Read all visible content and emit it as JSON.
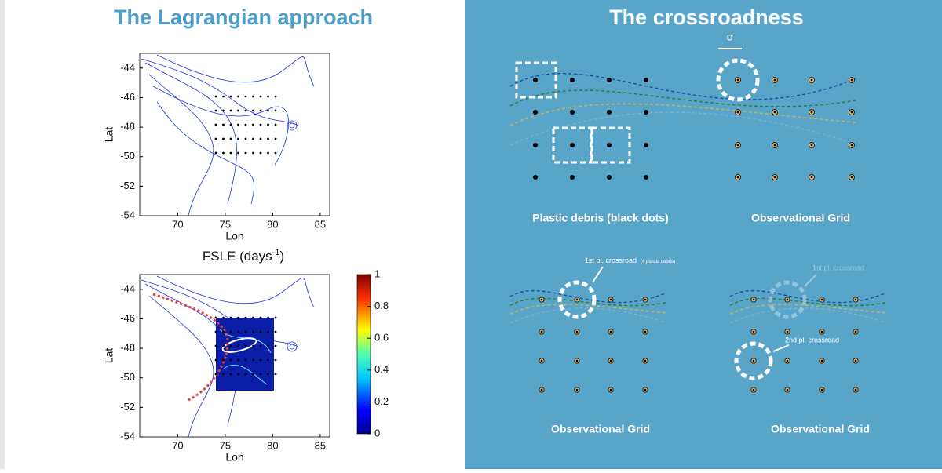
{
  "left": {
    "title": "The Lagrangian approach",
    "plots": [
      {
        "xlabel": "Lon",
        "ylabel": "Lat",
        "xlim": [
          66,
          86
        ],
        "ylim": [
          -54,
          -43
        ],
        "xticks": [
          70,
          75,
          80,
          85
        ],
        "yticks": [
          -54,
          -52,
          -50,
          -48,
          -46,
          -44
        ]
      },
      {
        "title": "FSLE (days",
        "title_sup": "-1",
        "title_end": ")",
        "xlabel": "Lon",
        "ylabel": "Lat",
        "xlim": [
          66,
          86
        ],
        "ylim": [
          -54,
          -43
        ],
        "xticks": [
          70,
          75,
          80,
          85
        ],
        "yticks": [
          -54,
          -52,
          -50,
          -48,
          -46,
          -44
        ],
        "colorbar": {
          "lim": [
            0,
            1
          ],
          "ticks": [
            0,
            0.2,
            0.4,
            0.6,
            0.8,
            1
          ]
        }
      }
    ]
  },
  "right": {
    "title": "The crossroadness",
    "sigma": "σ",
    "panels": [
      {
        "label": "Plastic debris (black dots)"
      },
      {
        "label": "Observational Grid"
      },
      {
        "label": "Observational Grid",
        "note": "1st pl. crossroad",
        "note_small": "(4 plastic debris)"
      },
      {
        "label": "Observational Grid",
        "note": "1st pl. crossroad",
        "note2": "2nd pl. crossroad"
      }
    ]
  }
}
